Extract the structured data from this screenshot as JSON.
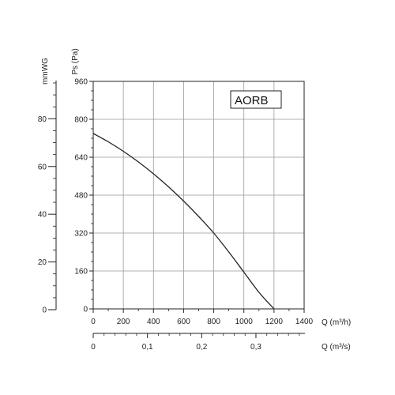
{
  "chart_data": {
    "type": "line",
    "legend_label": "AORB",
    "legend_position": "top-right",
    "grid": true,
    "primary_x": {
      "label": "Q (m³/h)",
      "range": [
        0,
        1400
      ],
      "ticks": [
        "0",
        "200",
        "400",
        "600",
        "800",
        "1000",
        "1200",
        "1400"
      ]
    },
    "secondary_x": {
      "label": "Q (m³/s)",
      "ticks": [
        "0",
        "0,1",
        "0,2",
        "0,3"
      ],
      "tick_values": [
        0,
        0.1,
        0.2,
        0.3
      ]
    },
    "primary_y": {
      "label": "Ps (Pa)",
      "range": [
        0,
        960
      ],
      "ticks": [
        "0",
        "160",
        "320",
        "480",
        "640",
        "800",
        "960"
      ]
    },
    "secondary_y": {
      "label": "mmWG",
      "range": [
        0,
        96
      ],
      "ticks": [
        "0",
        "20",
        "40",
        "60",
        "80"
      ],
      "tick_values": [
        0,
        20,
        40,
        60,
        80
      ]
    },
    "series": [
      {
        "x": [
          0,
          100,
          200,
          300,
          400,
          500,
          600,
          700,
          800,
          900,
          1000,
          1100,
          1200
        ],
        "y": [
          740,
          705,
          665,
          620,
          570,
          515,
          455,
          390,
          320,
          240,
          155,
          70,
          0
        ]
      }
    ],
    "colors": {
      "line": "#222222",
      "grid": "#999999",
      "axis": "#222222"
    }
  }
}
